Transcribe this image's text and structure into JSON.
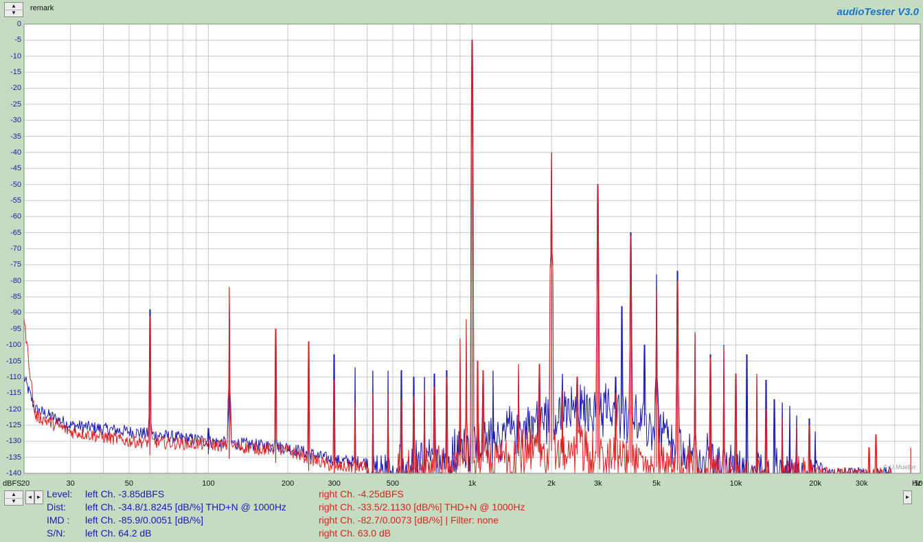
{
  "header": {
    "remark_label": "remark",
    "app_title": "audioTester  V3.0"
  },
  "footer": {
    "rows": [
      {
        "label": "Level:",
        "left": "left Ch. -3.85dBFS",
        "right": "right Ch. -4.25dBFS"
      },
      {
        "label": "Dist:",
        "left": "left Ch. -34.8/1.8245 [dB/%] THD+N  @ 1000Hz",
        "right": "right Ch. -33.5/2.1130 [dB/%] THD+N  @ 1000Hz"
      },
      {
        "label": "IMD  :",
        "left": "left Ch. -85.9/0.0051 [dB/%]",
        "right": "right Ch. -82.7/0.0073 [dB/%] |   Filter: none"
      },
      {
        "label": "S/N:",
        "left": "left Ch. 64.2 dB",
        "right": "right Ch. 63.0 dB"
      }
    ],
    "copyright": "© U.Mueller"
  },
  "colors": {
    "background": "#c4dcc0",
    "plot_bg": "#ffffff",
    "grid": "#c8c8c8",
    "left_channel": "#1a1ab4",
    "right_channel": "#e02020",
    "brand": "#1874cd"
  },
  "icons": [
    "spin-up-icon",
    "spin-down-icon",
    "arrow-left-icon",
    "arrow-right-icon"
  ],
  "chart_data": {
    "type": "line",
    "title": "",
    "xlabel": "Hz",
    "ylabel": "dBFS",
    "x_scale": "log",
    "xlim": [
      20,
      50000
    ],
    "ylim": [
      -140,
      0
    ],
    "grid": true,
    "y_ticks": [
      0,
      -5,
      -10,
      -15,
      -20,
      -25,
      -30,
      -35,
      -40,
      -45,
      -50,
      -55,
      -60,
      -65,
      -70,
      -75,
      -80,
      -85,
      -90,
      -95,
      -100,
      -105,
      -110,
      -115,
      -120,
      -125,
      -130,
      -135,
      -140
    ],
    "x_ticks": [
      {
        "value": 20,
        "label": "20"
      },
      {
        "value": 30,
        "label": "30"
      },
      {
        "value": 50,
        "label": "50"
      },
      {
        "value": 100,
        "label": "100"
      },
      {
        "value": 200,
        "label": "200"
      },
      {
        "value": 300,
        "label": "300"
      },
      {
        "value": 500,
        "label": "500"
      },
      {
        "value": 1000,
        "label": "1k"
      },
      {
        "value": 2000,
        "label": "2k"
      },
      {
        "value": 3000,
        "label": "3k"
      },
      {
        "value": 5000,
        "label": "5k"
      },
      {
        "value": 10000,
        "label": "10k"
      },
      {
        "value": 20000,
        "label": "20k"
      },
      {
        "value": 30000,
        "label": "30k"
      },
      {
        "value": 50000,
        "label": "50k"
      }
    ],
    "series": [
      {
        "name": "left Ch.",
        "color": "#1a1ab4",
        "noise_floor": [
          [
            20,
            -110
          ],
          [
            22,
            -120
          ],
          [
            30,
            -125
          ],
          [
            50,
            -127
          ],
          [
            100,
            -130
          ],
          [
            200,
            -132
          ],
          [
            300,
            -136
          ],
          [
            500,
            -137
          ],
          [
            1000,
            -128
          ],
          [
            1500,
            -122
          ],
          [
            2000,
            -118
          ],
          [
            3000,
            -116
          ],
          [
            4000,
            -118
          ],
          [
            5000,
            -124
          ],
          [
            7000,
            -132
          ],
          [
            10000,
            -136
          ],
          [
            15000,
            -137
          ],
          [
            20000,
            -137
          ],
          [
            22000,
            -140
          ],
          [
            50000,
            -140
          ]
        ],
        "peaks": [
          [
            60,
            -89
          ],
          [
            100,
            -126
          ],
          [
            120,
            -88
          ],
          [
            180,
            -96
          ],
          [
            240,
            -104
          ],
          [
            300,
            -103
          ],
          [
            360,
            -107
          ],
          [
            420,
            -108
          ],
          [
            480,
            -108
          ],
          [
            540,
            -108
          ],
          [
            600,
            -110
          ],
          [
            660,
            -110
          ],
          [
            720,
            -109
          ],
          [
            800,
            -108
          ],
          [
            900,
            -105
          ],
          [
            1000,
            -5
          ],
          [
            1100,
            -110
          ],
          [
            1200,
            -108
          ],
          [
            1500,
            -108
          ],
          [
            1800,
            -109
          ],
          [
            2000,
            -40
          ],
          [
            2200,
            -109
          ],
          [
            2500,
            -110
          ],
          [
            3000,
            -50
          ],
          [
            3500,
            -110
          ],
          [
            3700,
            -88
          ],
          [
            4000,
            -65
          ],
          [
            4500,
            -100
          ],
          [
            5000,
            -78
          ],
          [
            6000,
            -77
          ],
          [
            7000,
            -96
          ],
          [
            8000,
            -103
          ],
          [
            9000,
            -100
          ],
          [
            10000,
            -109
          ],
          [
            11000,
            -103
          ],
          [
            12000,
            -110
          ],
          [
            13000,
            -111
          ],
          [
            14000,
            -117
          ],
          [
            15000,
            -118
          ],
          [
            16000,
            -119
          ],
          [
            17000,
            -122
          ],
          [
            19000,
            -123
          ],
          [
            20000,
            -127
          ]
        ]
      },
      {
        "name": "right Ch.",
        "color": "#e02020",
        "noise_floor": [
          [
            20,
            -92
          ],
          [
            22,
            -122
          ],
          [
            30,
            -127
          ],
          [
            50,
            -130
          ],
          [
            100,
            -131
          ],
          [
            200,
            -133
          ],
          [
            300,
            -138
          ],
          [
            500,
            -138
          ],
          [
            1000,
            -133
          ],
          [
            2000,
            -129
          ],
          [
            3000,
            -131
          ],
          [
            5000,
            -134
          ],
          [
            10000,
            -138
          ],
          [
            20000,
            -140
          ],
          [
            50000,
            -140
          ]
        ],
        "peaks": [
          [
            20,
            -92
          ],
          [
            60,
            -91
          ],
          [
            120,
            -82
          ],
          [
            180,
            -95
          ],
          [
            240,
            -99
          ],
          [
            300,
            -111
          ],
          [
            360,
            -118
          ],
          [
            420,
            -115
          ],
          [
            480,
            -115
          ],
          [
            540,
            -117
          ],
          [
            600,
            -116
          ],
          [
            660,
            -114
          ],
          [
            720,
            -113
          ],
          [
            800,
            -110
          ],
          [
            900,
            -98
          ],
          [
            950,
            -92
          ],
          [
            1000,
            -5
          ],
          [
            1050,
            -105
          ],
          [
            1100,
            -108
          ],
          [
            1500,
            -106
          ],
          [
            1800,
            -106
          ],
          [
            2000,
            -40
          ],
          [
            2200,
            -114
          ],
          [
            2500,
            -110
          ],
          [
            3000,
            -50
          ],
          [
            3500,
            -115
          ],
          [
            4000,
            -66
          ],
          [
            5000,
            -83
          ],
          [
            6000,
            -80
          ],
          [
            7000,
            -96
          ],
          [
            8000,
            -104
          ],
          [
            9000,
            -101
          ],
          [
            10000,
            -109
          ],
          [
            12000,
            -109
          ],
          [
            13000,
            -120
          ],
          [
            15000,
            -123
          ],
          [
            17000,
            -125
          ],
          [
            19000,
            -125
          ],
          [
            32000,
            -132
          ],
          [
            34000,
            -128
          ],
          [
            46000,
            -132
          ]
        ]
      }
    ]
  }
}
